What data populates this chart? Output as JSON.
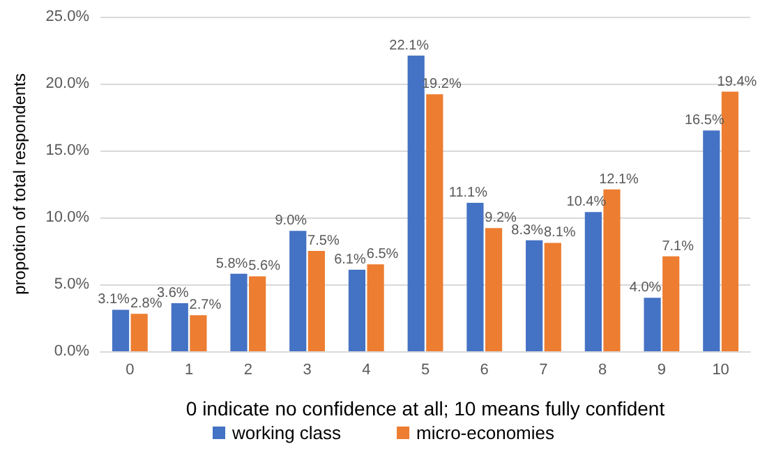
{
  "chart_data": {
    "type": "bar",
    "xlabel": "0 indicate no confidence at all; 10 means fully confident",
    "ylabel": "propotion of total respondents",
    "categories": [
      "0",
      "1",
      "2",
      "3",
      "4",
      "5",
      "6",
      "7",
      "8",
      "9",
      "10"
    ],
    "series": [
      {
        "name": "working class",
        "color": "#4472c4",
        "values": [
          3.1,
          3.6,
          5.8,
          9.0,
          6.1,
          22.1,
          11.1,
          8.3,
          10.4,
          4.0,
          16.5
        ],
        "value_labels": [
          "3.1%",
          "3.6%",
          "5.8%",
          "9.0%",
          "6.1%",
          "22.1%",
          "11.1%",
          "8.3%",
          "10.4%",
          "4.0%",
          "16.5%"
        ]
      },
      {
        "name": "micro-economies",
        "color": "#ed7d31",
        "values": [
          2.8,
          2.7,
          5.6,
          7.5,
          6.5,
          19.2,
          9.2,
          8.1,
          12.1,
          7.1,
          19.4
        ],
        "value_labels": [
          "2.8%",
          "2.7%",
          "5.6%",
          "7.5%",
          "6.5%",
          "19.2%",
          "9.2%",
          "8.1%",
          "12.1%",
          "7.1%",
          "19.4%"
        ]
      }
    ],
    "ylim": [
      0,
      25
    ],
    "yticks": [
      {
        "value": 0,
        "label": "0.0%"
      },
      {
        "value": 5,
        "label": "5.0%"
      },
      {
        "value": 10,
        "label": "10.0%"
      },
      {
        "value": 15,
        "label": "15.0%"
      },
      {
        "value": 20,
        "label": "20.0%"
      },
      {
        "value": 25,
        "label": "25.0%"
      }
    ],
    "grid": "y",
    "legend": "bottom"
  }
}
